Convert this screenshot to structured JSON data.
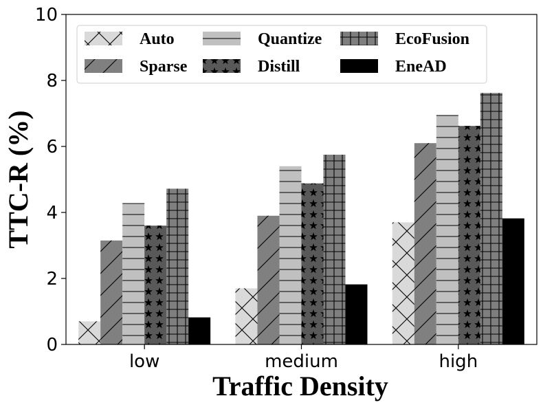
{
  "chart_data": {
    "type": "bar",
    "title": "",
    "xlabel": "Traffic Density",
    "ylabel": "TTC-R (%)",
    "categories": [
      "low",
      "medium",
      "high"
    ],
    "ylim": [
      0,
      10
    ],
    "yticks": [
      0,
      2,
      4,
      6,
      8,
      10
    ],
    "grid": false,
    "legend_position": "top-left",
    "legend_columns": 3,
    "series": [
      {
        "name": "Auto",
        "values": [
          0.7,
          1.7,
          3.7
        ],
        "fill": "#d9d9d9",
        "pattern": "cross-hatch"
      },
      {
        "name": "Sparse",
        "values": [
          3.15,
          3.9,
          6.1
        ],
        "fill": "#808080",
        "pattern": "diagonal"
      },
      {
        "name": "Quantize",
        "values": [
          4.28,
          5.4,
          6.95
        ],
        "fill": "#c0c0c0",
        "pattern": "horizontal"
      },
      {
        "name": "Distill",
        "values": [
          3.6,
          4.88,
          6.62
        ],
        "fill": "#595959",
        "pattern": "stars"
      },
      {
        "name": "EcoFusion",
        "values": [
          4.72,
          5.75,
          7.62
        ],
        "fill": "#7f7f7f",
        "pattern": "grid"
      },
      {
        "name": "EneAD",
        "values": [
          0.82,
          1.82,
          3.82
        ],
        "fill": "#000000",
        "pattern": "solid"
      }
    ]
  }
}
